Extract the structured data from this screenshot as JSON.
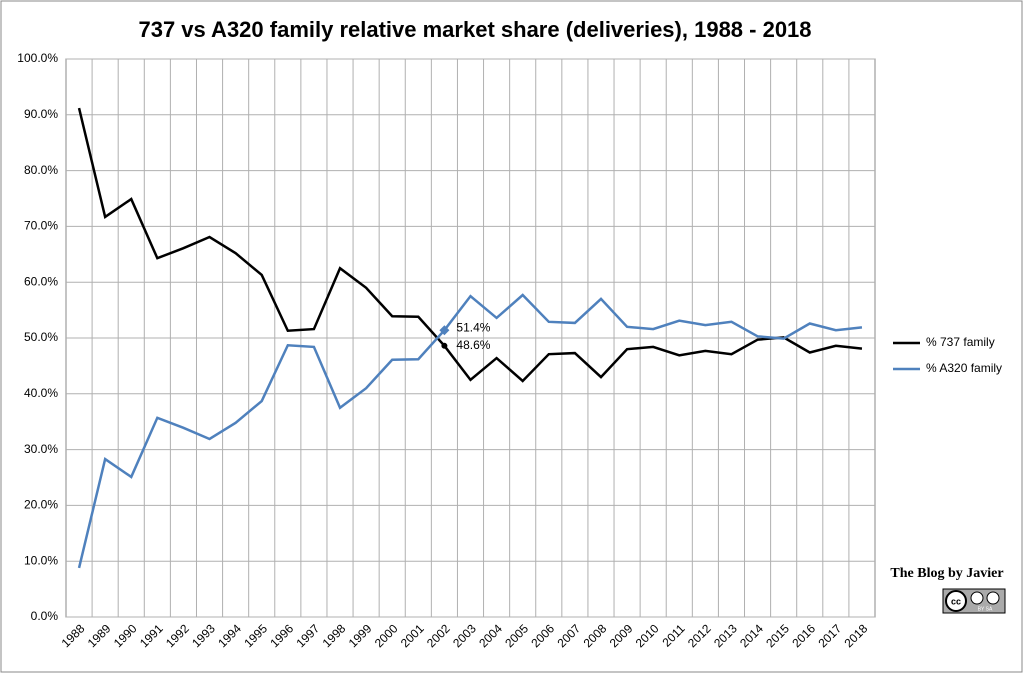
{
  "chart_data": {
    "type": "line",
    "title": "737 vs A320 family relative market share (deliveries), 1988 - 2018",
    "categories": [
      "1988",
      "1989",
      "1990",
      "1991",
      "1992",
      "1993",
      "1994",
      "1995",
      "1996",
      "1997",
      "1998",
      "1999",
      "2000",
      "2001",
      "2002",
      "2003",
      "2004",
      "2005",
      "2006",
      "2007",
      "2008",
      "2009",
      "2010",
      "2011",
      "2012",
      "2013",
      "2014",
      "2015",
      "2016",
      "2017",
      "2018"
    ],
    "series": [
      {
        "name": "% 737 family",
        "color": "#000000",
        "values": [
          91.2,
          71.7,
          74.9,
          64.3,
          66.1,
          68.1,
          65.2,
          61.3,
          51.3,
          51.6,
          62.5,
          59.0,
          53.9,
          53.8,
          48.6,
          42.5,
          46.4,
          42.3,
          47.1,
          47.3,
          43.0,
          48.0,
          48.4,
          46.9,
          47.7,
          47.1,
          49.7,
          50.1,
          47.4,
          48.6,
          48.1
        ],
        "value_labels": [
          null,
          null,
          null,
          null,
          null,
          null,
          null,
          null,
          null,
          null,
          null,
          null,
          null,
          null,
          "48.6%",
          null,
          null,
          null,
          null,
          null,
          null,
          null,
          null,
          null,
          null,
          null,
          null,
          null,
          null,
          null,
          null
        ]
      },
      {
        "name": "% A320 family",
        "color": "#4f81bd",
        "values": [
          8.8,
          28.3,
          25.1,
          35.7,
          33.9,
          31.9,
          34.8,
          38.7,
          48.7,
          48.4,
          37.5,
          41.0,
          46.1,
          46.2,
          51.4,
          57.5,
          53.6,
          57.7,
          52.9,
          52.7,
          57.0,
          52.0,
          51.6,
          53.1,
          52.3,
          52.9,
          50.3,
          49.9,
          52.6,
          51.4,
          51.9
        ],
        "value_labels": [
          null,
          null,
          null,
          null,
          null,
          null,
          null,
          null,
          null,
          null,
          null,
          null,
          null,
          null,
          "51.4%",
          null,
          null,
          null,
          null,
          null,
          null,
          null,
          null,
          null,
          null,
          null,
          null,
          null,
          null,
          null,
          null
        ]
      }
    ],
    "ylim": [
      0,
      100
    ],
    "yticks": [
      {
        "value": 0,
        "label": "0.0%"
      },
      {
        "value": 10,
        "label": "10.0%"
      },
      {
        "value": 20,
        "label": "20.0%"
      },
      {
        "value": 30,
        "label": "30.0%"
      },
      {
        "value": 40,
        "label": "40.0%"
      },
      {
        "value": 50,
        "label": "50.0%"
      },
      {
        "value": 60,
        "label": "60.0%"
      },
      {
        "value": 70,
        "label": "70.0%"
      },
      {
        "value": 80,
        "label": "80.0%"
      },
      {
        "value": 90,
        "label": "90.0%"
      },
      {
        "value": 100,
        "label": "100.0%"
      }
    ],
    "grid": true,
    "legend": "right",
    "watermark": "The Blog by Javier",
    "license": "cc",
    "license_terms": "BY  SA"
  }
}
